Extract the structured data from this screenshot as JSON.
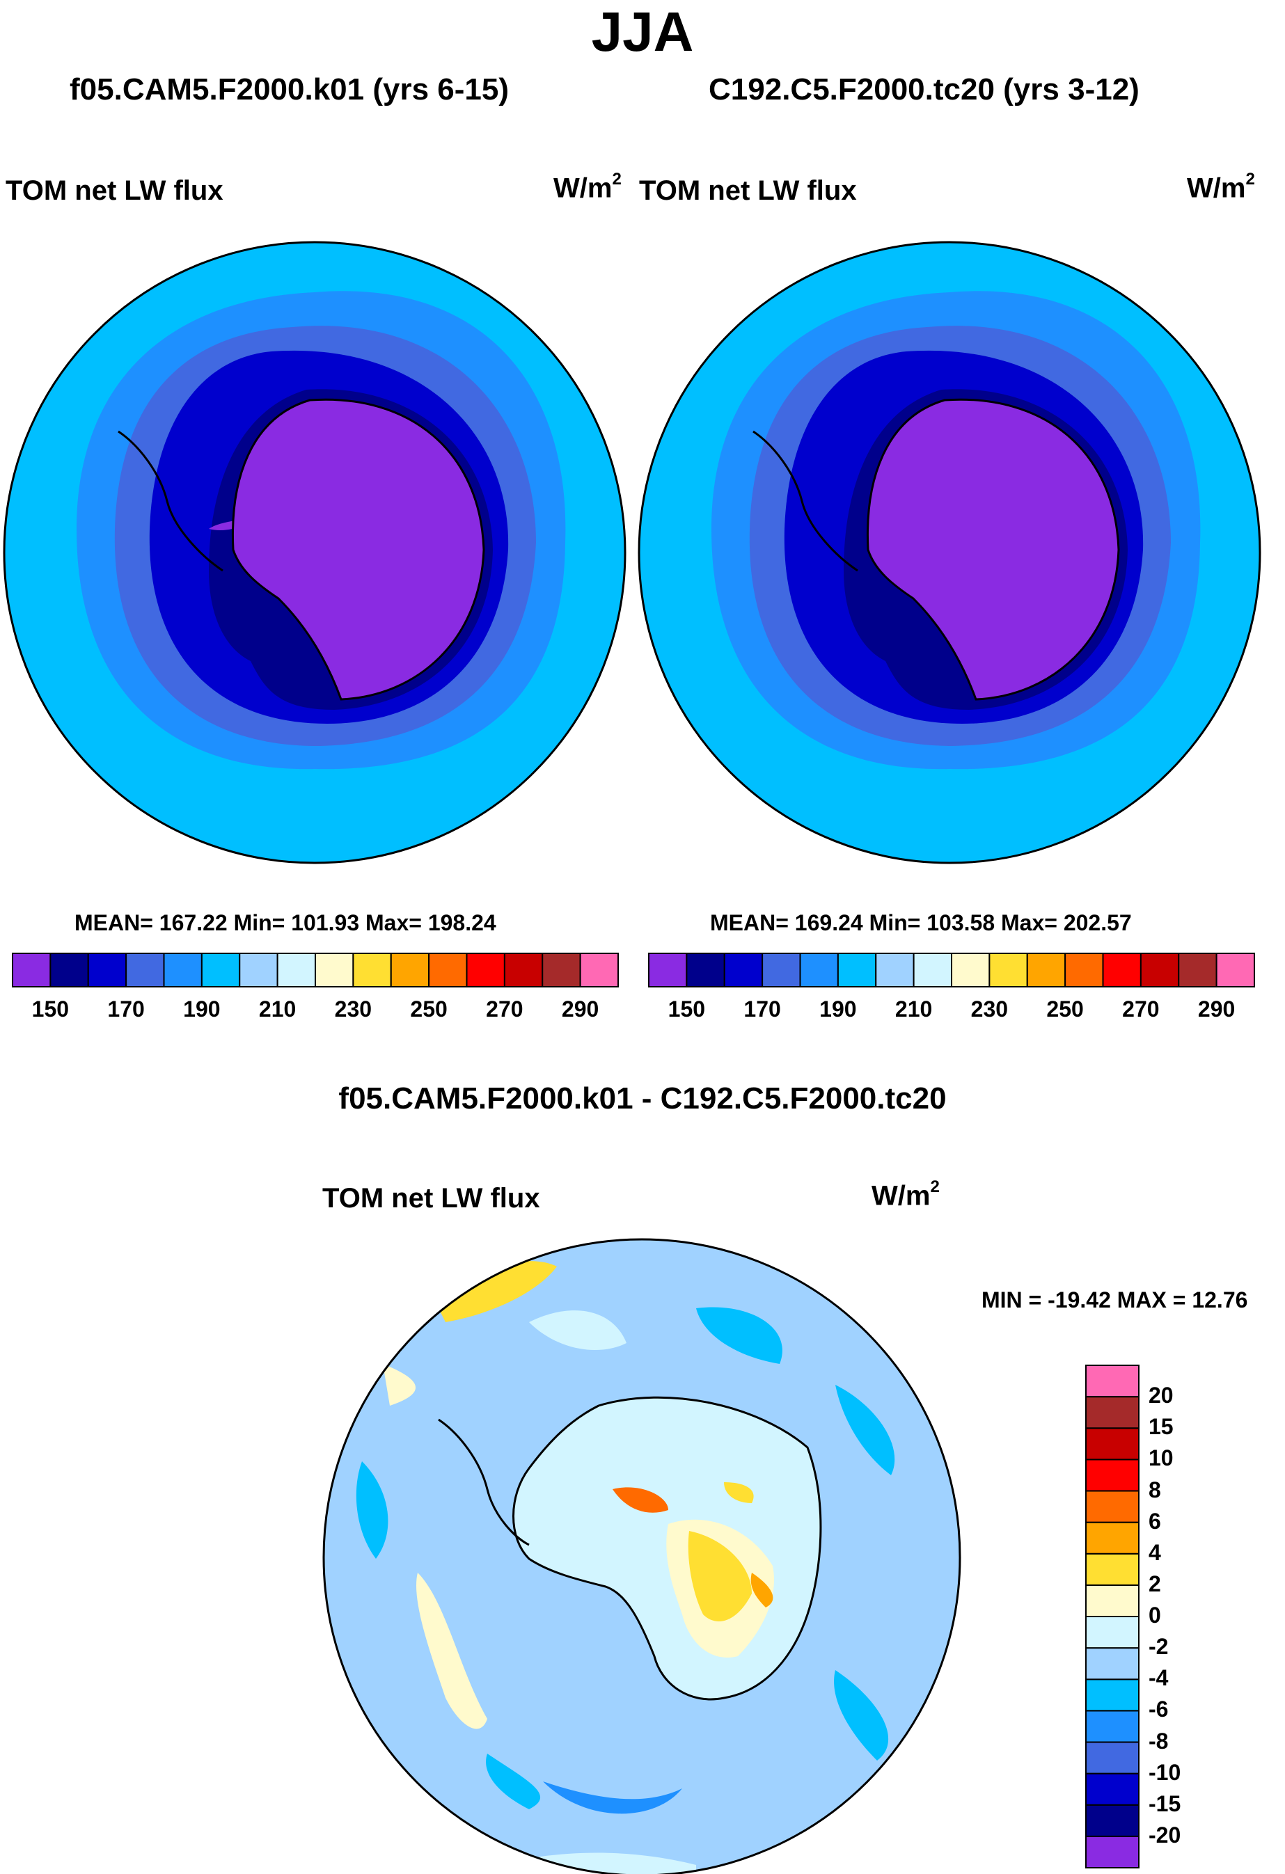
{
  "header": {
    "title": "JJA"
  },
  "panels": [
    {
      "case_title": "f05.CAM5.F2000.k01 (yrs 6-15)",
      "variable": "TOM net LW flux",
      "units_base": "W/m",
      "units_exp": "2",
      "stats": "MEAN= 167.22  Min= 101.93  Max= 198.24"
    },
    {
      "case_title": "C192.C5.F2000.tc20 (yrs 3-12)",
      "variable": "TOM net LW flux",
      "units_base": "W/m",
      "units_exp": "2",
      "stats": "MEAN= 169.24  Min= 103.58  Max= 202.57"
    }
  ],
  "diff": {
    "title": "f05.CAM5.F2000.k01 - C192.C5.F2000.tc20",
    "variable": "TOM net LW flux",
    "units_base": "W/m",
    "units_exp": "2",
    "minmax": "MIN = -19.42 MAX =  12.76"
  },
  "colorbar_main": {
    "colors": [
      "#8a2be2",
      "#00008b",
      "#0000cd",
      "#4169e1",
      "#1e90ff",
      "#00bfff",
      "#a0d2ff",
      "#d2f5ff",
      "#fffacd",
      "#ffdf32",
      "#ffa500",
      "#ff6a00",
      "#ff0000",
      "#c80000",
      "#a52a2a",
      "#ff69b4"
    ],
    "tick_labels": [
      "150",
      "170",
      "190",
      "210",
      "230",
      "250",
      "270",
      "290"
    ]
  },
  "colorbar_diff": {
    "colors": [
      "#8a2be2",
      "#00008b",
      "#0000cd",
      "#4169e1",
      "#1e90ff",
      "#00bfff",
      "#a0d2ff",
      "#d2f5ff",
      "#fffacd",
      "#ffdf32",
      "#ffa500",
      "#ff6a00",
      "#ff0000",
      "#c80000",
      "#a52a2a",
      "#ff69b4"
    ],
    "tick_labels": [
      "20",
      "15",
      "10",
      "8",
      "6",
      "4",
      "2",
      "0",
      "-2",
      "-4",
      "-6",
      "-8",
      "-10",
      "-15",
      "-20"
    ]
  }
}
